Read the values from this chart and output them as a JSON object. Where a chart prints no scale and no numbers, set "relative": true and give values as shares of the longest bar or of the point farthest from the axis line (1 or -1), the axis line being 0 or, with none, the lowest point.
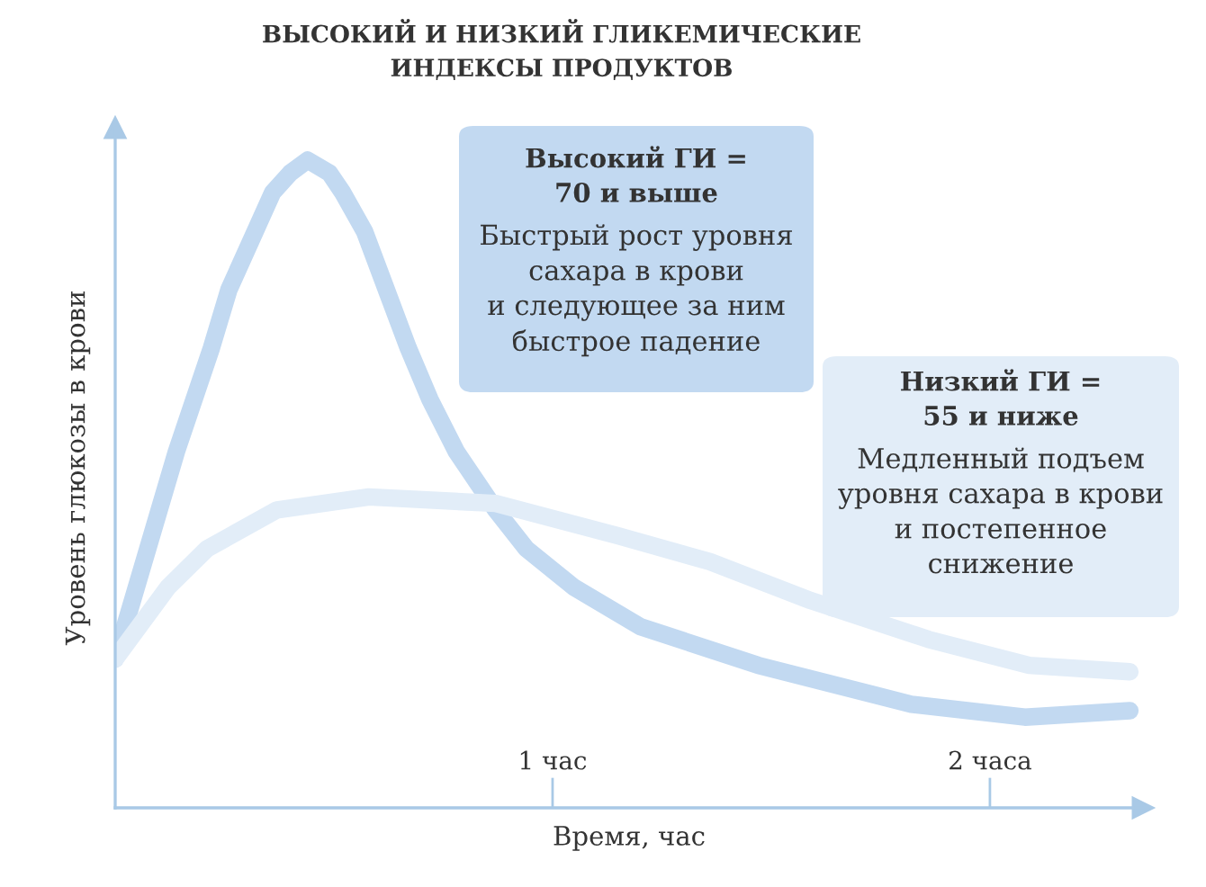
{
  "chart_data": {
    "type": "line",
    "title": "ВЫСОКИЙ И НИЗКИЙ ГЛИКЕМИЧЕСКИЕ\nИНДЕКСЫ ПРОДУКТОВ",
    "xlabel": "Время, час",
    "ylabel": "Уровень глюкозы в крови",
    "relative": true,
    "xlim": [
      0,
      2.35
    ],
    "xticks": [
      {
        "value": 1,
        "label": "1 час"
      },
      {
        "value": 2,
        "label": "2 часа"
      }
    ],
    "tick_labels": "x",
    "grid": false,
    "legend": false,
    "line_style": "solid",
    "series": [
      {
        "color": "#c2d9f1",
        "x": [
          0,
          0.14,
          0.18,
          0.22,
          0.26,
          0.32,
          0.36,
          0.4,
          0.44,
          0.49,
          0.52,
          0.57,
          0.62,
          0.67,
          0.72,
          0.78,
          0.87,
          0.94,
          1.05,
          1.2,
          1.47,
          1.82,
          2.08,
          2.32
        ],
        "values": [
          0.23,
          0.55,
          0.63,
          0.71,
          0.8,
          0.89,
          0.95,
          0.98,
          1.0,
          0.98,
          0.95,
          0.89,
          0.8,
          0.71,
          0.63,
          0.55,
          0.46,
          0.4,
          0.34,
          0.28,
          0.22,
          0.16,
          0.14,
          0.15
        ]
      },
      {
        "color": "#e2edf8",
        "x": [
          0,
          0.12,
          0.21,
          0.37,
          0.58,
          0.87,
          1.15,
          1.36,
          1.59,
          1.86,
          2.09,
          2.32
        ],
        "values": [
          0.23,
          0.34,
          0.4,
          0.46,
          0.48,
          0.47,
          0.42,
          0.38,
          0.32,
          0.26,
          0.22,
          0.21
        ]
      }
    ],
    "annotations": [
      "Высокий ГИ =\n70 и выше",
      "Быстрый рост уровня\nсахара в крови\nи следующее за ним\nбыстрое падение",
      "Низкий ГИ =\n55 и ниже",
      "Медленный подъем\nуровня сахара в крови\nи постепенное\nснижение"
    ]
  }
}
